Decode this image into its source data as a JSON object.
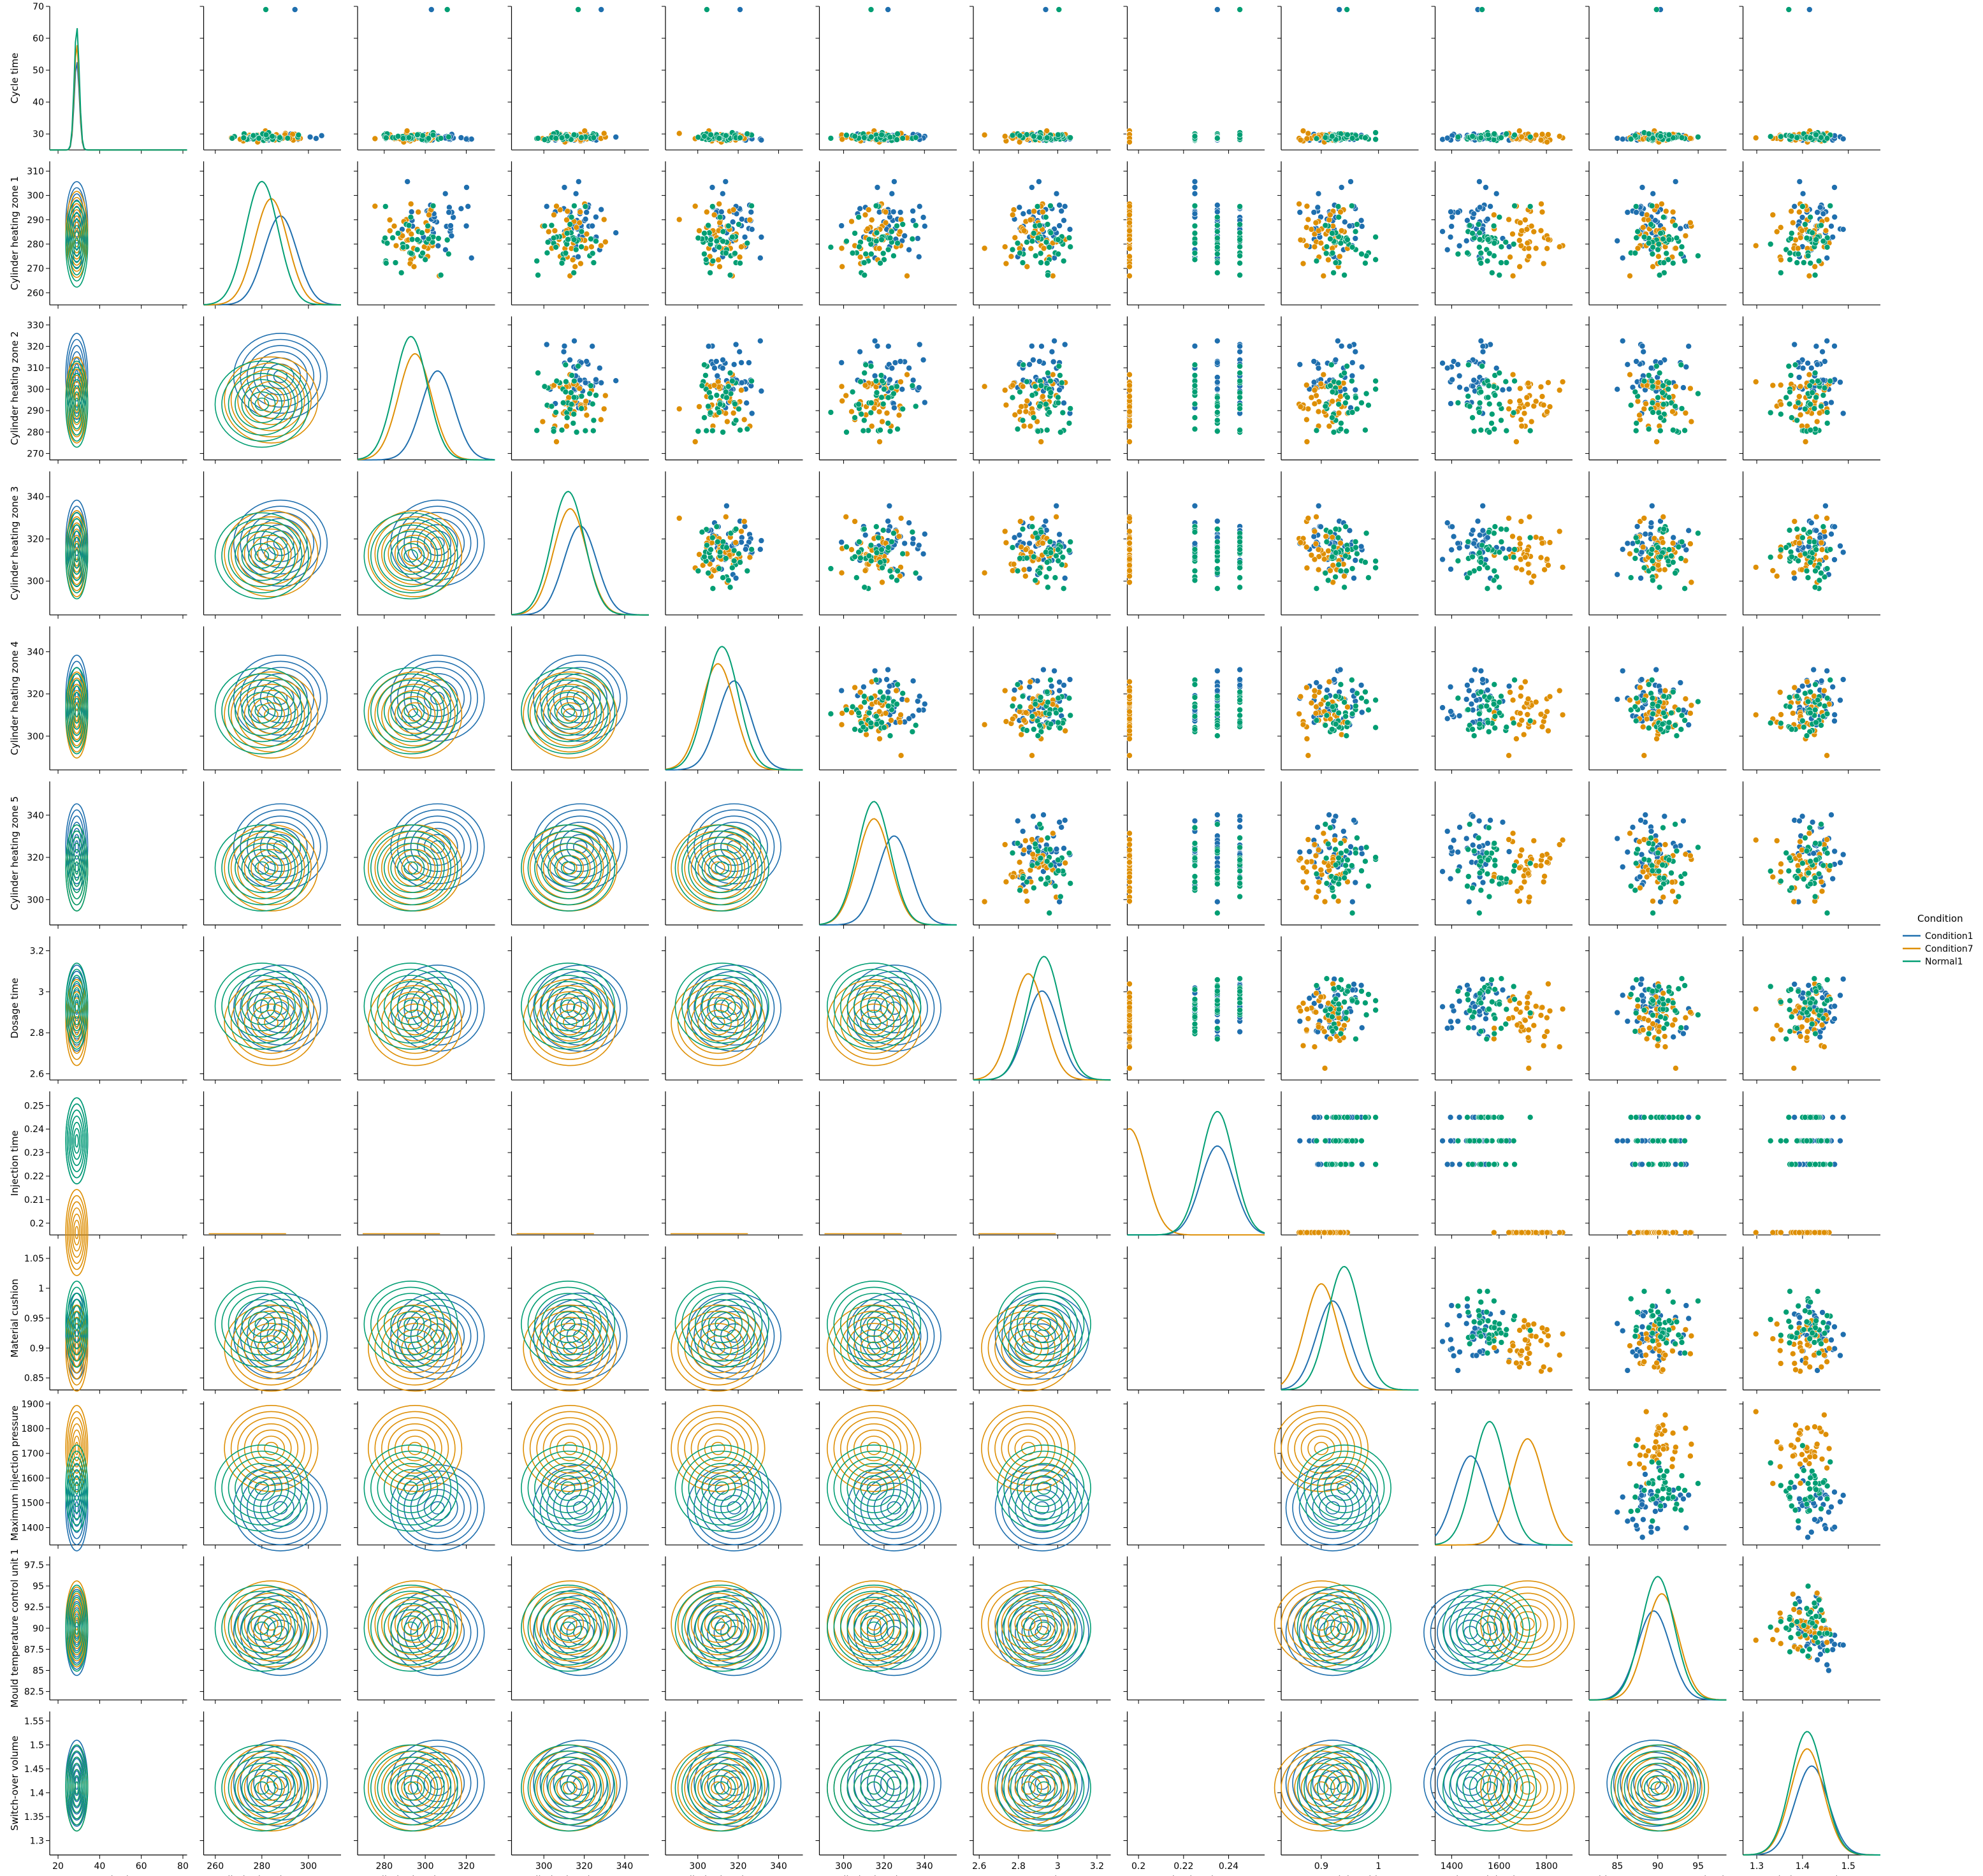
{
  "chart_data": {
    "type": "scatter",
    "layout": "pairplot",
    "diagonal": "kde",
    "upper": "scatter",
    "lower": "kde-contour",
    "grid": false,
    "legend_title": "Condition",
    "legend_placement": "right",
    "series": [
      {
        "name": "Condition1",
        "color": "#1f6fae"
      },
      {
        "name": "Condition7",
        "color": "#de8f05"
      },
      {
        "name": "Normal1",
        "color": "#029e73"
      }
    ],
    "variables": [
      {
        "name": "Cycle time",
        "range": [
          16,
          82
        ],
        "ticks": [
          20,
          40,
          60,
          80
        ],
        "y_range": [
          25,
          70
        ],
        "y_ticks": [
          30,
          40,
          50,
          60,
          70
        ],
        "means": [
          29,
          29,
          29
        ]
      },
      {
        "name": "Cylinder heating zone 1",
        "range": [
          255,
          314
        ],
        "ticks": [
          260,
          280,
          300
        ],
        "y_range": [
          255,
          314
        ],
        "y_ticks": [
          260,
          270,
          280,
          290,
          300,
          310
        ],
        "means": [
          288,
          284,
          280
        ]
      },
      {
        "name": "Cylinder heating zone 2",
        "range": [
          267,
          334
        ],
        "ticks": [
          280,
          300,
          320
        ],
        "y_range": [
          267,
          334
        ],
        "y_ticks": [
          270,
          280,
          290,
          300,
          310,
          320,
          330
        ],
        "means": [
          306,
          295,
          293
        ]
      },
      {
        "name": "Cylinder heating zone 3",
        "range": [
          284,
          352
        ],
        "ticks": [
          300,
          320,
          340
        ],
        "y_range": [
          284,
          352
        ],
        "y_ticks": [
          300,
          320,
          340
        ],
        "means": [
          318,
          313,
          312
        ]
      },
      {
        "name": "Cylinder heating zone 4",
        "range": [
          284,
          352
        ],
        "ticks": [
          300,
          320,
          340
        ],
        "y_range": [
          284,
          352
        ],
        "y_ticks": [
          300,
          320,
          340
        ],
        "means": [
          318,
          310,
          312
        ]
      },
      {
        "name": "Cylinder heating zone 5",
        "range": [
          288,
          356
        ],
        "ticks": [
          300,
          320,
          340
        ],
        "y_range": [
          288,
          356
        ],
        "y_ticks": [
          300,
          320,
          340
        ],
        "means": [
          325,
          315,
          315
        ]
      },
      {
        "name": "Dosage time",
        "range": [
          2.57,
          3.27
        ],
        "ticks": [
          2.6,
          2.8,
          3.0,
          3.2
        ],
        "y_range": [
          2.57,
          3.27
        ],
        "y_ticks": [
          2.6,
          2.8,
          3.0,
          3.2
        ],
        "means": [
          2.92,
          2.85,
          2.93
        ]
      },
      {
        "name": "Injection time",
        "range": [
          0.195,
          0.256
        ],
        "ticks": [
          0.2,
          0.22,
          0.24
        ],
        "y_range": [
          0.195,
          0.256
        ],
        "y_ticks": [
          0.2,
          0.21,
          0.22,
          0.23,
          0.24,
          0.25
        ],
        "means": [
          0.235,
          0.196,
          0.235
        ]
      },
      {
        "name": "Material cushion",
        "range": [
          0.83,
          1.07
        ],
        "ticks": [
          0.9,
          1.0
        ],
        "y_range": [
          0.83,
          1.07
        ],
        "y_ticks": [
          0.85,
          0.9,
          0.95,
          1.0,
          1.05
        ],
        "means": [
          0.92,
          0.9,
          0.94
        ]
      },
      {
        "name": "Maximum injection pressure",
        "range": [
          1330,
          1910
        ],
        "ticks": [
          1400,
          1600,
          1800
        ],
        "y_range": [
          1330,
          1910
        ],
        "y_ticks": [
          1400,
          1500,
          1600,
          1700,
          1800,
          1900
        ],
        "means": [
          1480,
          1720,
          1560
        ]
      },
      {
        "name": "Mould temperature control unit 1",
        "range": [
          81.5,
          98.5
        ],
        "ticks": [
          85,
          90,
          95
        ],
        "y_range": [
          81.5,
          98.5
        ],
        "y_ticks": [
          82.5,
          85.0,
          87.5,
          90.0,
          92.5,
          95.0,
          97.5
        ],
        "means": [
          89.5,
          90.5,
          90
        ]
      },
      {
        "name": "Switch-over volume",
        "range": [
          1.27,
          1.57
        ],
        "ticks": [
          1.3,
          1.4,
          1.5
        ],
        "y_range": [
          1.27,
          1.57
        ],
        "y_ticks": [
          1.3,
          1.35,
          1.4,
          1.45,
          1.5,
          1.55
        ],
        "means": [
          1.42,
          1.41,
          1.41
        ]
      }
    ]
  }
}
